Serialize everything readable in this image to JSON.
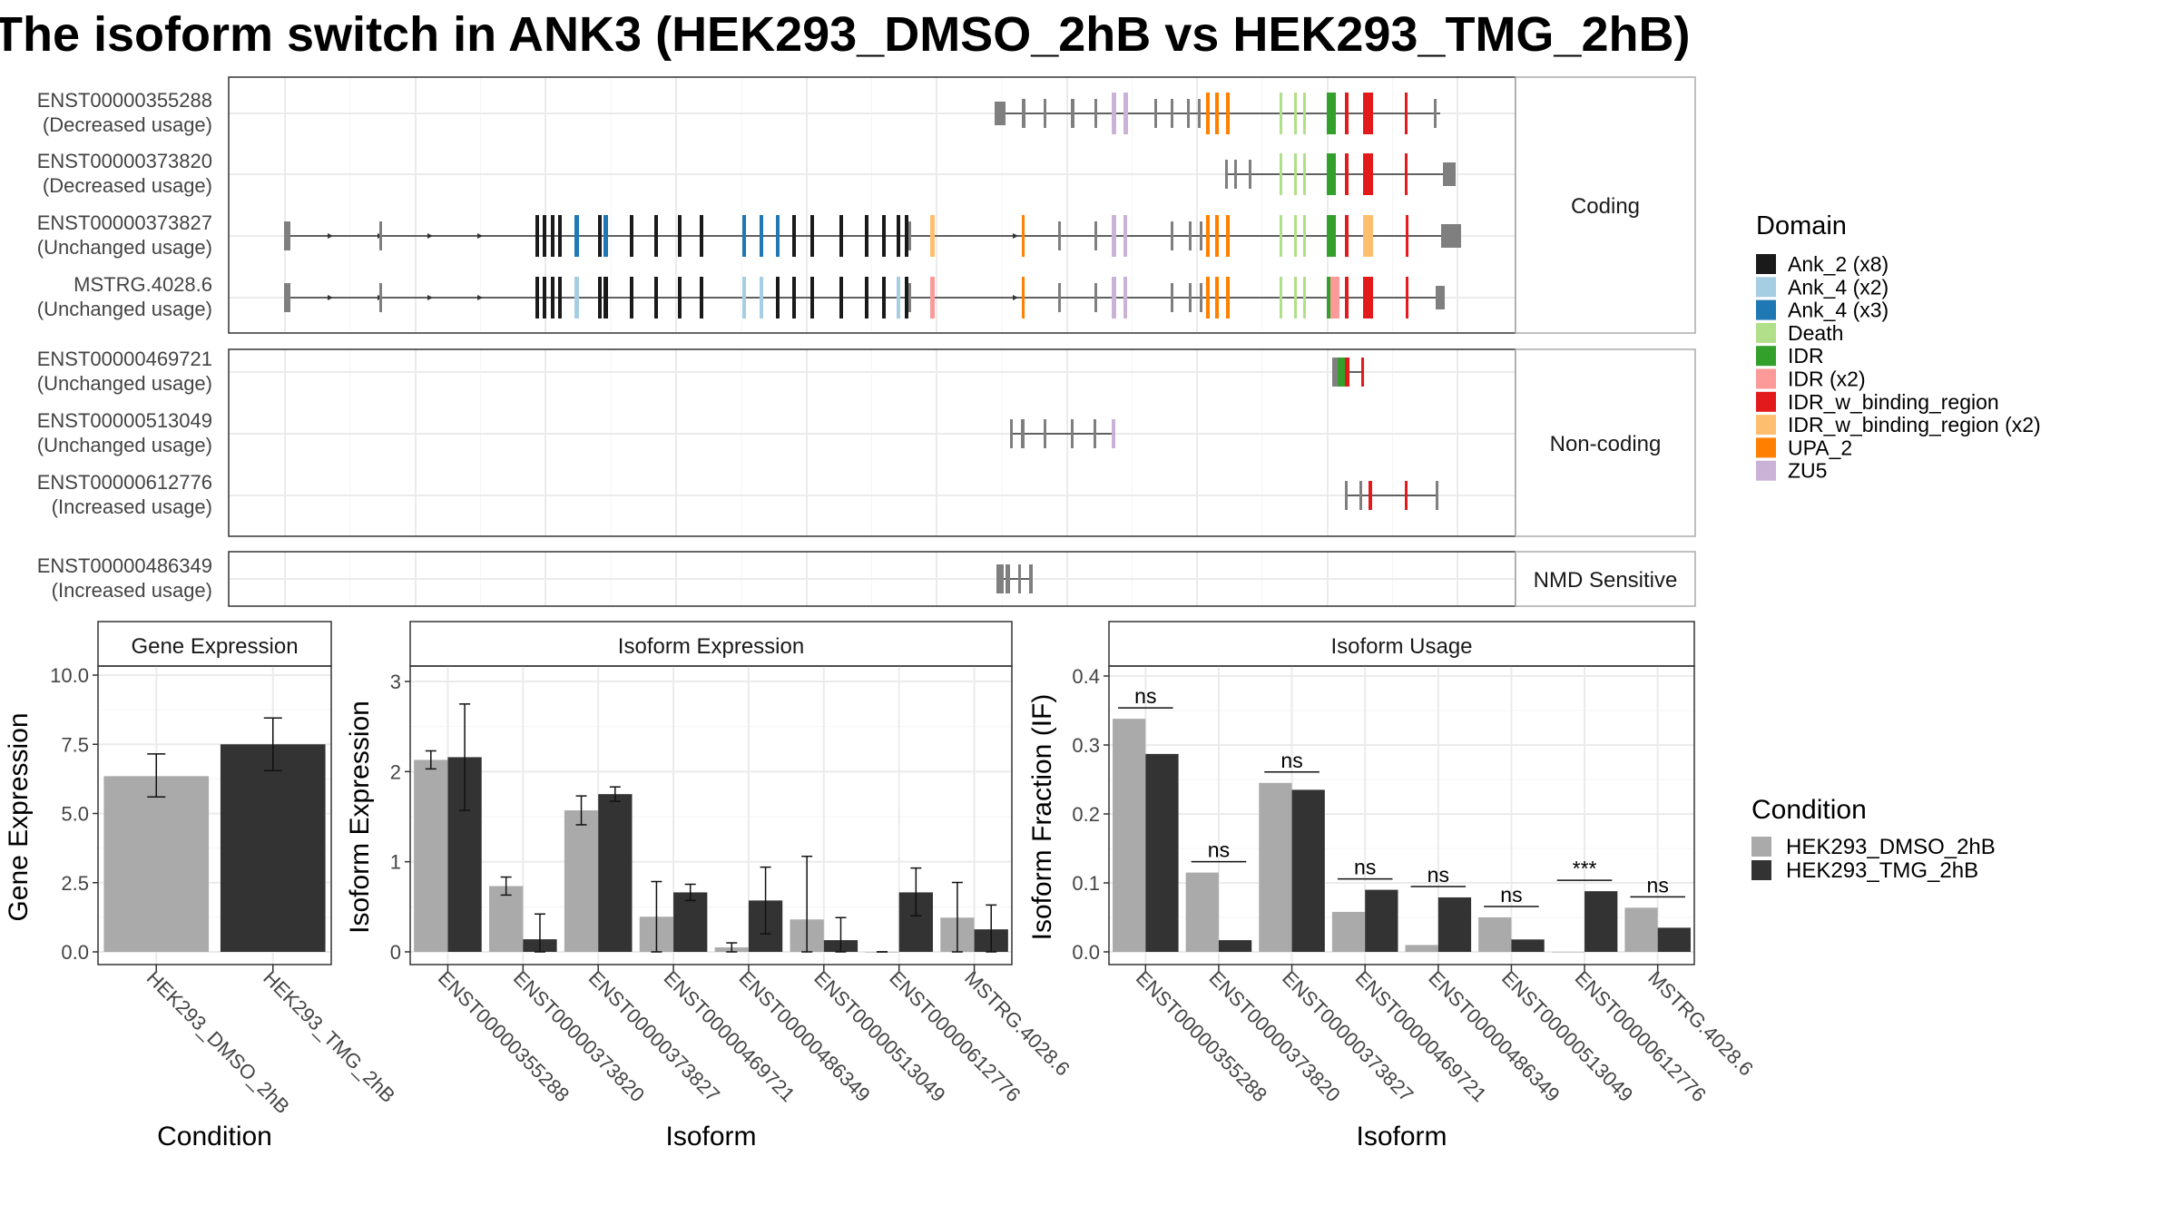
{
  "title": "The isoform switch in ANK3 (HEK293_DMSO_2hB vs HEK293_TMG_2hB)",
  "structure_panels": [
    {
      "label": "Coding",
      "isoforms": [
        {
          "id": "ENST00000355288",
          "usage": "(Decreased usage)",
          "type": "coding"
        },
        {
          "id": "ENST00000373820",
          "usage": "(Decreased usage)",
          "type": "coding"
        },
        {
          "id": "ENST00000373827",
          "usage": "(Unchanged usage)",
          "type": "coding"
        },
        {
          "id": "MSTRG.4028.6",
          "usage": "(Unchanged usage)",
          "type": "coding"
        }
      ]
    },
    {
      "label": "Non-coding",
      "isoforms": [
        {
          "id": "ENST00000469721",
          "usage": "(Unchanged usage)",
          "type": "noncoding"
        },
        {
          "id": "ENST00000513049",
          "usage": "(Unchanged usage)",
          "type": "noncoding"
        },
        {
          "id": "ENST00000612776",
          "usage": "(Increased usage)",
          "type": "noncoding"
        }
      ]
    },
    {
      "label": "NMD Sensitive",
      "isoforms": [
        {
          "id": "ENST00000486349",
          "usage": "(Increased usage)",
          "type": "nmd"
        }
      ]
    }
  ],
  "domain_legend": {
    "title": "Domain",
    "items": [
      {
        "label": "Ank_2 (x8)",
        "color": "#1a1a1a"
      },
      {
        "label": "Ank_4 (x2)",
        "color": "#a6cee3"
      },
      {
        "label": "Ank_4 (x3)",
        "color": "#1f78b4"
      },
      {
        "label": "Death",
        "color": "#b2df8a"
      },
      {
        "label": "IDR",
        "color": "#33a02c"
      },
      {
        "label": "IDR (x2)",
        "color": "#fb9a99"
      },
      {
        "label": "IDR_w_binding_region",
        "color": "#e31a1c"
      },
      {
        "label": "IDR_w_binding_region (x2)",
        "color": "#fdbf6f"
      },
      {
        "label": "UPA_2",
        "color": "#ff7f00"
      },
      {
        "label": "ZU5",
        "color": "#cab2d6"
      }
    ]
  },
  "condition_legend": {
    "title": "Condition",
    "items": [
      {
        "label": "HEK293_DMSO_2hB",
        "color": "#aaaaaa"
      },
      {
        "label": "HEK293_TMG_2hB",
        "color": "#333333"
      }
    ]
  },
  "chart_data": [
    {
      "type": "bar",
      "title": "Gene Expression",
      "xlabel": "Condition",
      "ylabel": "Gene Expression",
      "categories": [
        "HEK293_DMSO_2hB",
        "HEK293_TMG_2hB"
      ],
      "values": [
        6.35,
        7.5
      ],
      "errors": [
        [
          5.6,
          7.15
        ],
        [
          6.55,
          8.45
        ]
      ],
      "ylim": [
        0,
        10
      ],
      "yticks": [
        "0.0",
        "2.5",
        "5.0",
        "7.5",
        "10.0"
      ],
      "ytick_values": [
        0,
        2.5,
        5,
        7.5,
        10
      ],
      "colors": [
        "#aaaaaa",
        "#333333"
      ]
    },
    {
      "type": "bar",
      "title": "Isoform Expression",
      "xlabel": "Isoform",
      "ylabel": "Isoform Expression",
      "categories": [
        "ENST00000355288",
        "ENST00000373820",
        "ENST00000373827",
        "ENST00000469721",
        "ENST00000486349",
        "ENST00000513049",
        "ENST00000612776",
        "MSTRG.4028.6"
      ],
      "series": [
        {
          "name": "HEK293_DMSO_2hB",
          "values": [
            2.13,
            0.73,
            1.57,
            0.39,
            0.05,
            0.36,
            0.0,
            0.38
          ],
          "errors": [
            [
              2.03,
              2.23
            ],
            [
              0.63,
              0.83
            ],
            [
              1.41,
              1.73
            ],
            [
              0.0,
              0.78
            ],
            [
              0.0,
              0.1
            ],
            [
              0.0,
              1.06
            ],
            [
              0.0,
              0.0
            ],
            [
              0.0,
              0.77
            ]
          ]
        },
        {
          "name": "HEK293_TMG_2hB",
          "values": [
            2.16,
            0.14,
            1.75,
            0.66,
            0.57,
            0.13,
            0.66,
            0.25
          ],
          "errors": [
            [
              1.57,
              2.75
            ],
            [
              0.0,
              0.42
            ],
            [
              1.67,
              1.83
            ],
            [
              0.57,
              0.75
            ],
            [
              0.2,
              0.94
            ],
            [
              0.0,
              0.38
            ],
            [
              0.4,
              0.93
            ],
            [
              0.0,
              0.52
            ]
          ]
        }
      ],
      "ylim": [
        0,
        3.3
      ],
      "yticks": [
        "0",
        "1",
        "2",
        "3"
      ],
      "ytick_values": [
        0,
        1,
        2,
        3
      ]
    },
    {
      "type": "bar",
      "title": "Isoform Usage",
      "xlabel": "Isoform",
      "ylabel": "Isoform Fraction (IF)",
      "categories": [
        "ENST00000355288",
        "ENST00000373820",
        "ENST00000373827",
        "ENST00000469721",
        "ENST00000486349",
        "ENST00000513049",
        "ENST00000612776",
        "MSTRG.4028.6"
      ],
      "series": [
        {
          "name": "HEK293_DMSO_2hB",
          "values": [
            0.338,
            0.115,
            0.245,
            0.058,
            0.01,
            0.05,
            0.0,
            0.064
          ]
        },
        {
          "name": "HEK293_TMG_2hB",
          "values": [
            0.287,
            0.017,
            0.235,
            0.09,
            0.079,
            0.018,
            0.088,
            0.035
          ]
        }
      ],
      "significance": [
        "ns",
        "ns",
        "ns",
        "ns",
        "ns",
        "ns",
        "***",
        "ns"
      ],
      "ylim": [
        0,
        0.4
      ],
      "yticks": [
        "0.0",
        "0.1",
        "0.2",
        "0.3",
        "0.4"
      ],
      "ytick_values": [
        0,
        0.1,
        0.2,
        0.3,
        0.4
      ]
    }
  ]
}
